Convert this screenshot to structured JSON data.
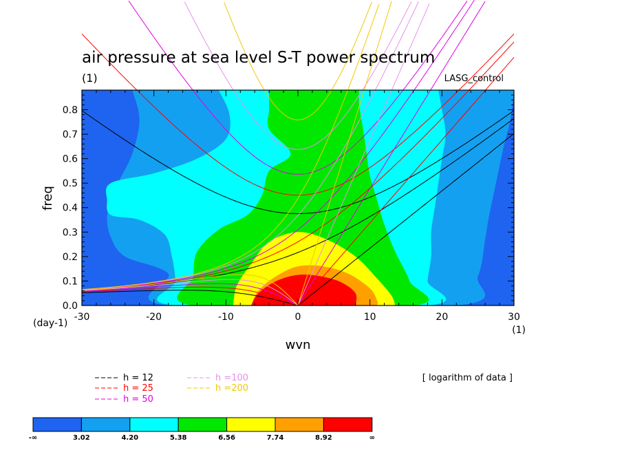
{
  "chart_data": {
    "type": "heatmap",
    "title": "air pressure at sea level S-T power spectrum",
    "subtitle_left": "(1)",
    "subtitle_right": "LASG_control",
    "xlabel": "wvn",
    "ylabel": "freq",
    "x_unit_label": "(1)",
    "y_unit_label": "(day-1)",
    "xlim": [
      -30,
      30
    ],
    "ylim": [
      0,
      0.88
    ],
    "x_ticks": [
      -30,
      -20,
      -10,
      0,
      10,
      20,
      30
    ],
    "x_tick_labels": [
      "-30",
      "-20",
      "-10",
      "0",
      "10",
      "20",
      "30"
    ],
    "y_ticks": [
      0,
      0.1,
      0.2,
      0.3,
      0.4,
      0.5,
      0.6,
      0.7,
      0.8
    ],
    "y_tick_labels": [
      "0.0",
      "0.1",
      "0.2",
      "0.3",
      "0.4",
      "0.5",
      "0.6",
      "0.7",
      "0.8"
    ],
    "note": "[ logarithm of data ]",
    "levels": [
      "-∞",
      "3.02",
      "4.20",
      "5.38",
      "6.56",
      "7.74",
      "8.92",
      "∞"
    ],
    "level_colors": [
      "#1e64f0",
      "#14a0f0",
      "#00ffff",
      "#00e800",
      "#ffff00",
      "#ffa000",
      "#ff0000"
    ],
    "dispersion_curves": [
      {
        "name": "h = 12",
        "h": 12,
        "color": "#000000"
      },
      {
        "name": "h = 25",
        "h": 25,
        "color": "#ff0000"
      },
      {
        "name": "h = 50",
        "h": 50,
        "color": "#e000e0"
      },
      {
        "name": "h =100",
        "h": 100,
        "color": "#e890e8"
      },
      {
        "name": "h =200",
        "h": 200,
        "color": "#f0c800"
      }
    ],
    "contour_regions": [
      {
        "level": 1,
        "points": [
          [
            -23,
            0.88
          ],
          [
            -22,
            0.76
          ],
          [
            -23,
            0.62
          ],
          [
            -25,
            0.5
          ],
          [
            -26,
            0.42
          ],
          [
            -26.5,
            0.36
          ],
          [
            -26,
            0.28
          ],
          [
            -24,
            0.2
          ],
          [
            -18,
            0.13
          ],
          [
            -18,
            0
          ],
          [
            22,
            0
          ],
          [
            25,
            0.12
          ],
          [
            26,
            0.27
          ],
          [
            26.5,
            0.36
          ],
          [
            27.5,
            0.5
          ],
          [
            28.5,
            0.64
          ],
          [
            29.5,
            0.76
          ],
          [
            30,
            0.88
          ]
        ]
      },
      {
        "level": 2,
        "points": [
          [
            -11,
            0.88
          ],
          [
            -9.5,
            0.78
          ],
          [
            -10,
            0.68
          ],
          [
            -14,
            0.6
          ],
          [
            -20,
            0.54
          ],
          [
            -26,
            0.5
          ],
          [
            -26.5,
            0.43
          ],
          [
            -26,
            0.37
          ],
          [
            -22,
            0.35
          ],
          [
            -18.5,
            0.29
          ],
          [
            -17.5,
            0.2
          ],
          [
            -17,
            0.1
          ],
          [
            -17,
            0
          ],
          [
            18,
            0
          ],
          [
            18,
            0.1
          ],
          [
            18.5,
            0.2
          ],
          [
            18.5,
            0.3
          ],
          [
            19,
            0.4
          ],
          [
            19.5,
            0.5
          ],
          [
            20,
            0.6
          ],
          [
            20.5,
            0.7
          ],
          [
            20,
            0.8
          ],
          [
            19.5,
            0.88
          ]
        ]
      },
      {
        "level": 3,
        "points": [
          [
            -4,
            0.88
          ],
          [
            -4,
            0.8
          ],
          [
            -4,
            0.72
          ],
          [
            -1,
            0.62
          ],
          [
            -4,
            0.55
          ],
          [
            -5,
            0.45
          ],
          [
            -7,
            0.37
          ],
          [
            -11,
            0.31
          ],
          [
            -14,
            0.22
          ],
          [
            -14.5,
            0.12
          ],
          [
            -14.5,
            0
          ],
          [
            16,
            0
          ],
          [
            15.5,
            0.1
          ],
          [
            13.5,
            0.22
          ],
          [
            12,
            0.33
          ],
          [
            11,
            0.43
          ],
          [
            10,
            0.53
          ],
          [
            9.5,
            0.63
          ],
          [
            9,
            0.73
          ],
          [
            8.5,
            0.82
          ],
          [
            8.5,
            0.88
          ]
        ]
      },
      {
        "level": 4,
        "points": [
          [
            -9,
            0
          ],
          [
            -8.5,
            0.08
          ],
          [
            -6.5,
            0.17
          ],
          [
            -4,
            0.26
          ],
          [
            0,
            0.3
          ],
          [
            4,
            0.27
          ],
          [
            8,
            0.2
          ],
          [
            11,
            0.11
          ],
          [
            13,
            0.04
          ],
          [
            13.5,
            0
          ]
        ]
      },
      {
        "level": 5,
        "points": [
          [
            -6.5,
            0
          ],
          [
            -5.5,
            0.06
          ],
          [
            -3,
            0.12
          ],
          [
            0,
            0.16
          ],
          [
            3.5,
            0.16
          ],
          [
            7,
            0.13
          ],
          [
            10,
            0.07
          ],
          [
            11,
            0.02
          ],
          [
            11,
            0
          ]
        ]
      },
      {
        "level": 6,
        "points": [
          [
            -6.5,
            0
          ],
          [
            -5.5,
            0.05
          ],
          [
            -3,
            0.1
          ],
          [
            0,
            0.125
          ],
          [
            3,
            0.12
          ],
          [
            6,
            0.095
          ],
          [
            8,
            0.05
          ],
          [
            8,
            0
          ]
        ]
      }
    ]
  },
  "legend": {
    "items": [
      "h = 12",
      "h = 25",
      "h = 50",
      "h =100",
      "h =200"
    ],
    "colors": [
      "#000000",
      "#ff0000",
      "#e000e0",
      "#e890e8",
      "#f0c800"
    ]
  }
}
